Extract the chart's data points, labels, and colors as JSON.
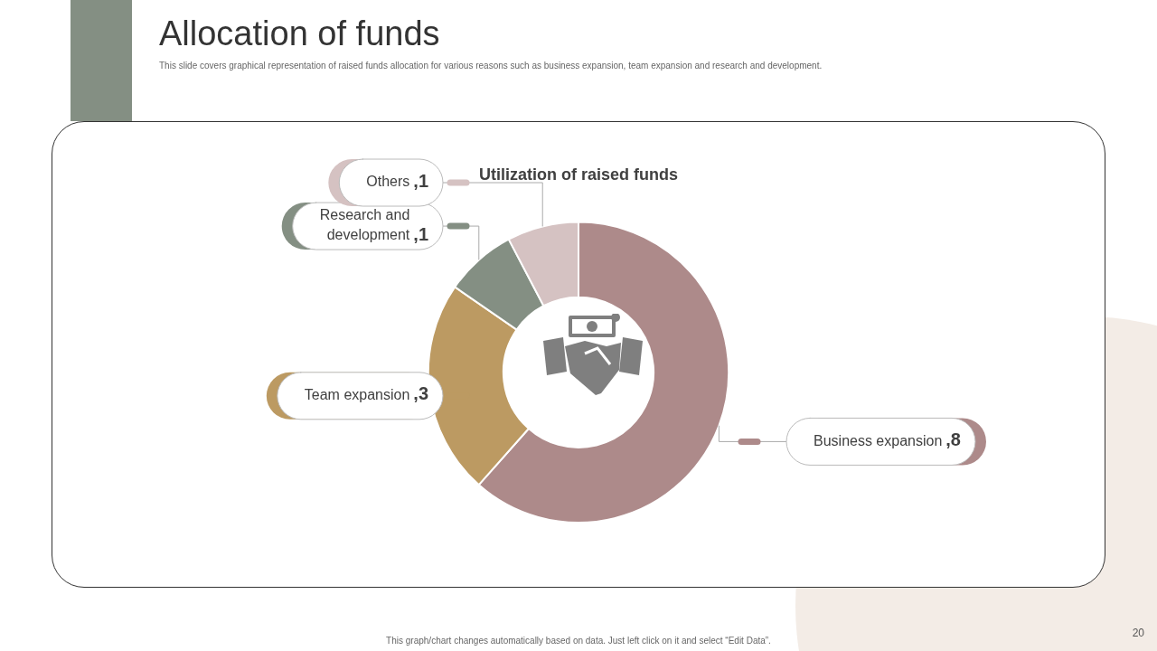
{
  "chart_data": {
    "type": "donut",
    "title": "Allocation of funds",
    "subtitle": "This slide covers graphical representation of raised funds allocation for various reasons such as business expansion, team expansion and research and development.",
    "xlabel": "Utilization of raised funds",
    "categories": [
      "Business expansion",
      "Team expansion",
      "Research and development",
      "Others"
    ],
    "values": [
      8,
      3,
      1,
      1
    ],
    "colors": [
      "#ad8a8a",
      "#bc9a62",
      "#848f83",
      "#d5c2c2"
    ],
    "value_labels": [
      ",8",
      ",3",
      ",1",
      ",1"
    ],
    "legend": false,
    "annotations": [
      "This graph/chart changes automatically based on data. Just left click on it and select “Edit Data”.",
      "20"
    ]
  }
}
